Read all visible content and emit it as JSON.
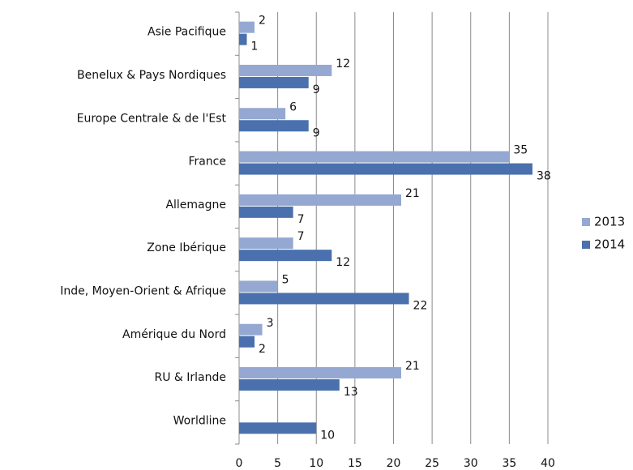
{
  "chart_data": {
    "type": "bar",
    "orientation": "horizontal",
    "categories": [
      "Asie Pacifique",
      "Benelux & Pays Nordiques",
      "Europe Centrale & de l'Est",
      "France",
      "Allemagne",
      "Zone Ibérique",
      "Inde, Moyen-Orient & Afrique",
      "Amérique du Nord",
      "RU & Irlande",
      "Worldline"
    ],
    "series": [
      {
        "name": "2013",
        "color": "#94a8d2",
        "values": [
          2,
          12,
          6,
          35,
          21,
          7,
          5,
          3,
          21,
          null
        ]
      },
      {
        "name": "2014",
        "color": "#4a71ad",
        "values": [
          1,
          9,
          9,
          38,
          7,
          12,
          22,
          2,
          13,
          10
        ]
      }
    ],
    "xlim": [
      0,
      40
    ],
    "xticks": [
      0,
      5,
      10,
      15,
      20,
      25,
      30,
      35,
      40
    ],
    "grid": true,
    "legend": "right"
  }
}
